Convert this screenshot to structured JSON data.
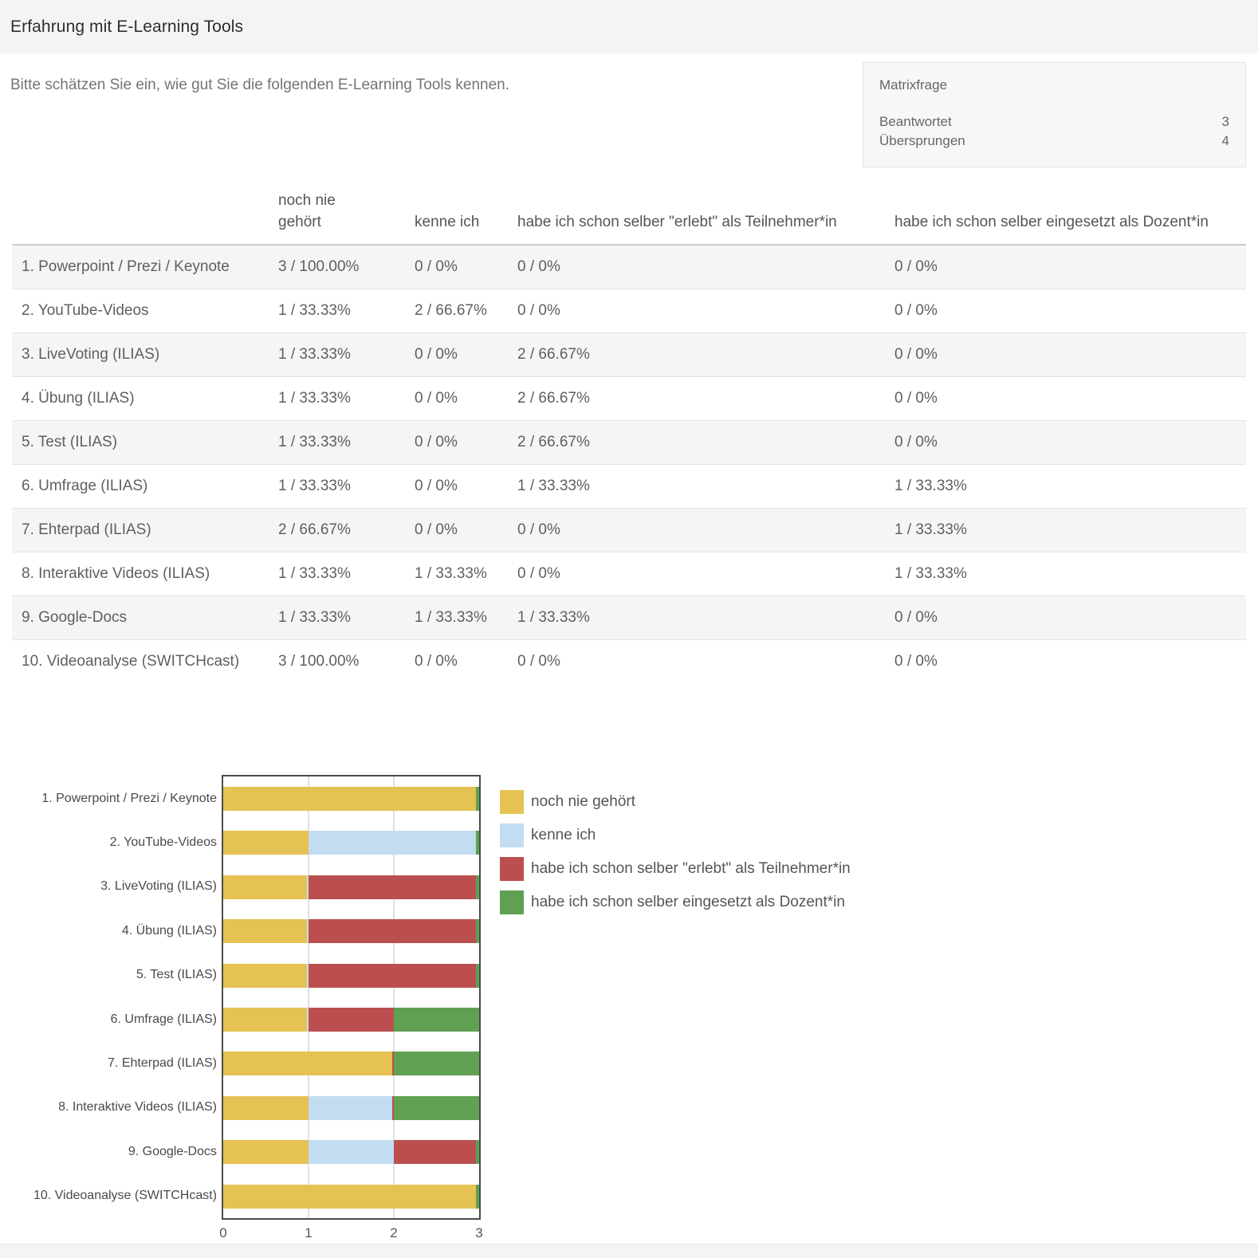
{
  "header": {
    "title": "Erfahrung mit E-Learning Tools"
  },
  "question": {
    "text": "Bitte schätzen Sie ein, wie gut Sie die folgenden E-Learning Tools kennen."
  },
  "info_box": {
    "type": "Matrixfrage",
    "answered_label": "Beantwortet",
    "answered_value": "3",
    "skipped_label": "Übersprungen",
    "skipped_value": "4"
  },
  "table": {
    "columns": [
      "noch nie gehört",
      "kenne ich",
      "habe ich schon selber \"erlebt\" als Teilnehmer*in",
      "habe ich schon selber eingesetzt als Dozent*in"
    ],
    "rows": [
      {
        "label": "1. Powerpoint / Prezi / Keynote",
        "cells": [
          "3 / 100.00%",
          "0 / 0%",
          "0 / 0%",
          "0 / 0%"
        ]
      },
      {
        "label": "2. YouTube-Videos",
        "cells": [
          "1 / 33.33%",
          "2 / 66.67%",
          "0 / 0%",
          "0 / 0%"
        ]
      },
      {
        "label": "3. LiveVoting (ILIAS)",
        "cells": [
          "1 / 33.33%",
          "0 / 0%",
          "2 / 66.67%",
          "0 / 0%"
        ]
      },
      {
        "label": "4. Übung (ILIAS)",
        "cells": [
          "1 / 33.33%",
          "0 / 0%",
          "2 / 66.67%",
          "0 / 0%"
        ]
      },
      {
        "label": "5. Test (ILIAS)",
        "cells": [
          "1 / 33.33%",
          "0 / 0%",
          "2 / 66.67%",
          "0 / 0%"
        ]
      },
      {
        "label": "6. Umfrage (ILIAS)",
        "cells": [
          "1 / 33.33%",
          "0 / 0%",
          "1 / 33.33%",
          "1 / 33.33%"
        ]
      },
      {
        "label": "7. Ehterpad (ILIAS)",
        "cells": [
          "2 / 66.67%",
          "0 / 0%",
          "0 / 0%",
          "1 / 33.33%"
        ]
      },
      {
        "label": "8. Interaktive Videos (ILIAS)",
        "cells": [
          "1 / 33.33%",
          "1 / 33.33%",
          "0 / 0%",
          "1 / 33.33%"
        ]
      },
      {
        "label": "9. Google-Docs",
        "cells": [
          "1 / 33.33%",
          "1 / 33.33%",
          "1 / 33.33%",
          "0 / 0%"
        ]
      },
      {
        "label": "10. Videoanalyse (SWITCHcast)",
        "cells": [
          "3 / 100.00%",
          "0 / 0%",
          "0 / 0%",
          "0 / 0%"
        ]
      }
    ]
  },
  "chart_data": {
    "type": "bar",
    "orientation": "horizontal_stacked",
    "title": "",
    "categories": [
      "1. Powerpoint / Prezi / Keynote",
      "2. YouTube-Videos",
      "3. LiveVoting (ILIAS)",
      "4. Übung (ILIAS)",
      "5. Test (ILIAS)",
      "6. Umfrage (ILIAS)",
      "7. Ehterpad (ILIAS)",
      "8. Interaktive Videos (ILIAS)",
      "9. Google-Docs",
      "10. Videoanalyse (SWITCHcast)"
    ],
    "series": [
      {
        "name": "noch nie gehört",
        "color": "#e5c253",
        "values": [
          3,
          1,
          1,
          1,
          1,
          1,
          2,
          1,
          1,
          3
        ]
      },
      {
        "name": "kenne ich",
        "color": "#c2dcf2",
        "values": [
          0,
          2,
          0,
          0,
          0,
          0,
          0,
          1,
          1,
          0
        ]
      },
      {
        "name": "habe ich schon selber \"erlebt\" als Teilnehmer*in",
        "color": "#bb4f4f",
        "values": [
          0,
          0,
          2,
          2,
          2,
          1,
          0,
          0,
          1,
          0
        ]
      },
      {
        "name": "habe ich schon selber eingesetzt als Dozent*in",
        "color": "#60a053",
        "values": [
          0,
          0,
          0,
          0,
          0,
          1,
          1,
          1,
          0,
          0
        ]
      }
    ],
    "xlim": [
      0,
      3
    ],
    "xticks": [
      "0",
      "1",
      "2",
      "3"
    ],
    "grid": true,
    "legend_position": "right"
  }
}
